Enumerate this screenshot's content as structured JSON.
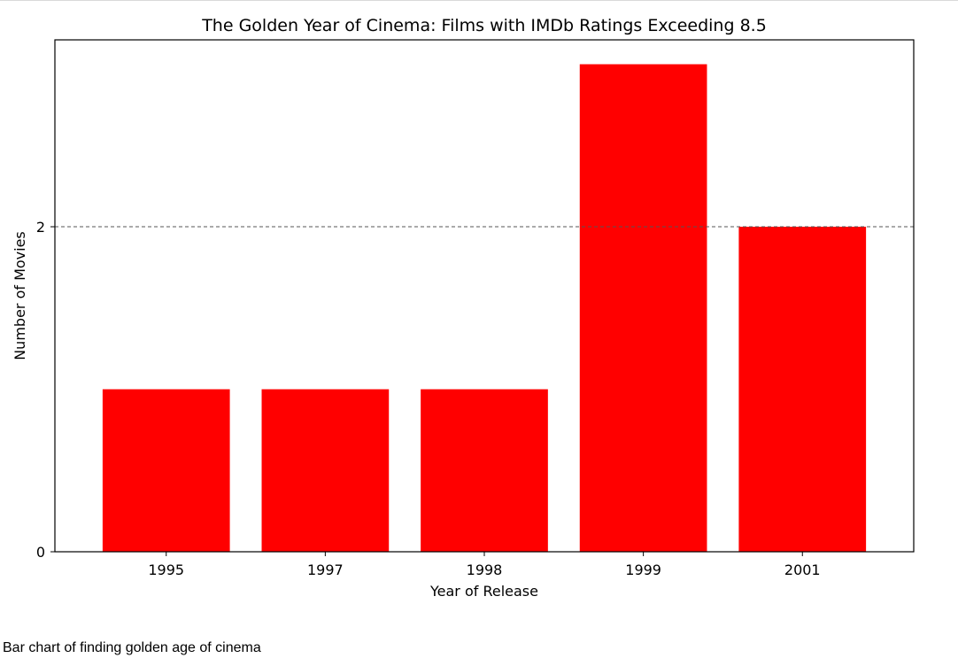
{
  "chart_data": {
    "type": "bar",
    "title": "The Golden Year of Cinema: Films with IMDb Ratings Exceeding 8.5",
    "xlabel": "Year of Release",
    "ylabel": "Number of Movies",
    "categories": [
      "1995",
      "1997",
      "1998",
      "1999",
      "2001"
    ],
    "values": [
      1,
      1,
      1,
      3,
      2
    ],
    "ylim": [
      0,
      3.15
    ],
    "yticks": [
      0,
      2
    ],
    "reference_line": {
      "y": 2,
      "style": "dashed"
    },
    "grid": false,
    "bar_color": "#ff0000",
    "legend": "none"
  },
  "caption": "Bar chart of finding golden age of cinema"
}
